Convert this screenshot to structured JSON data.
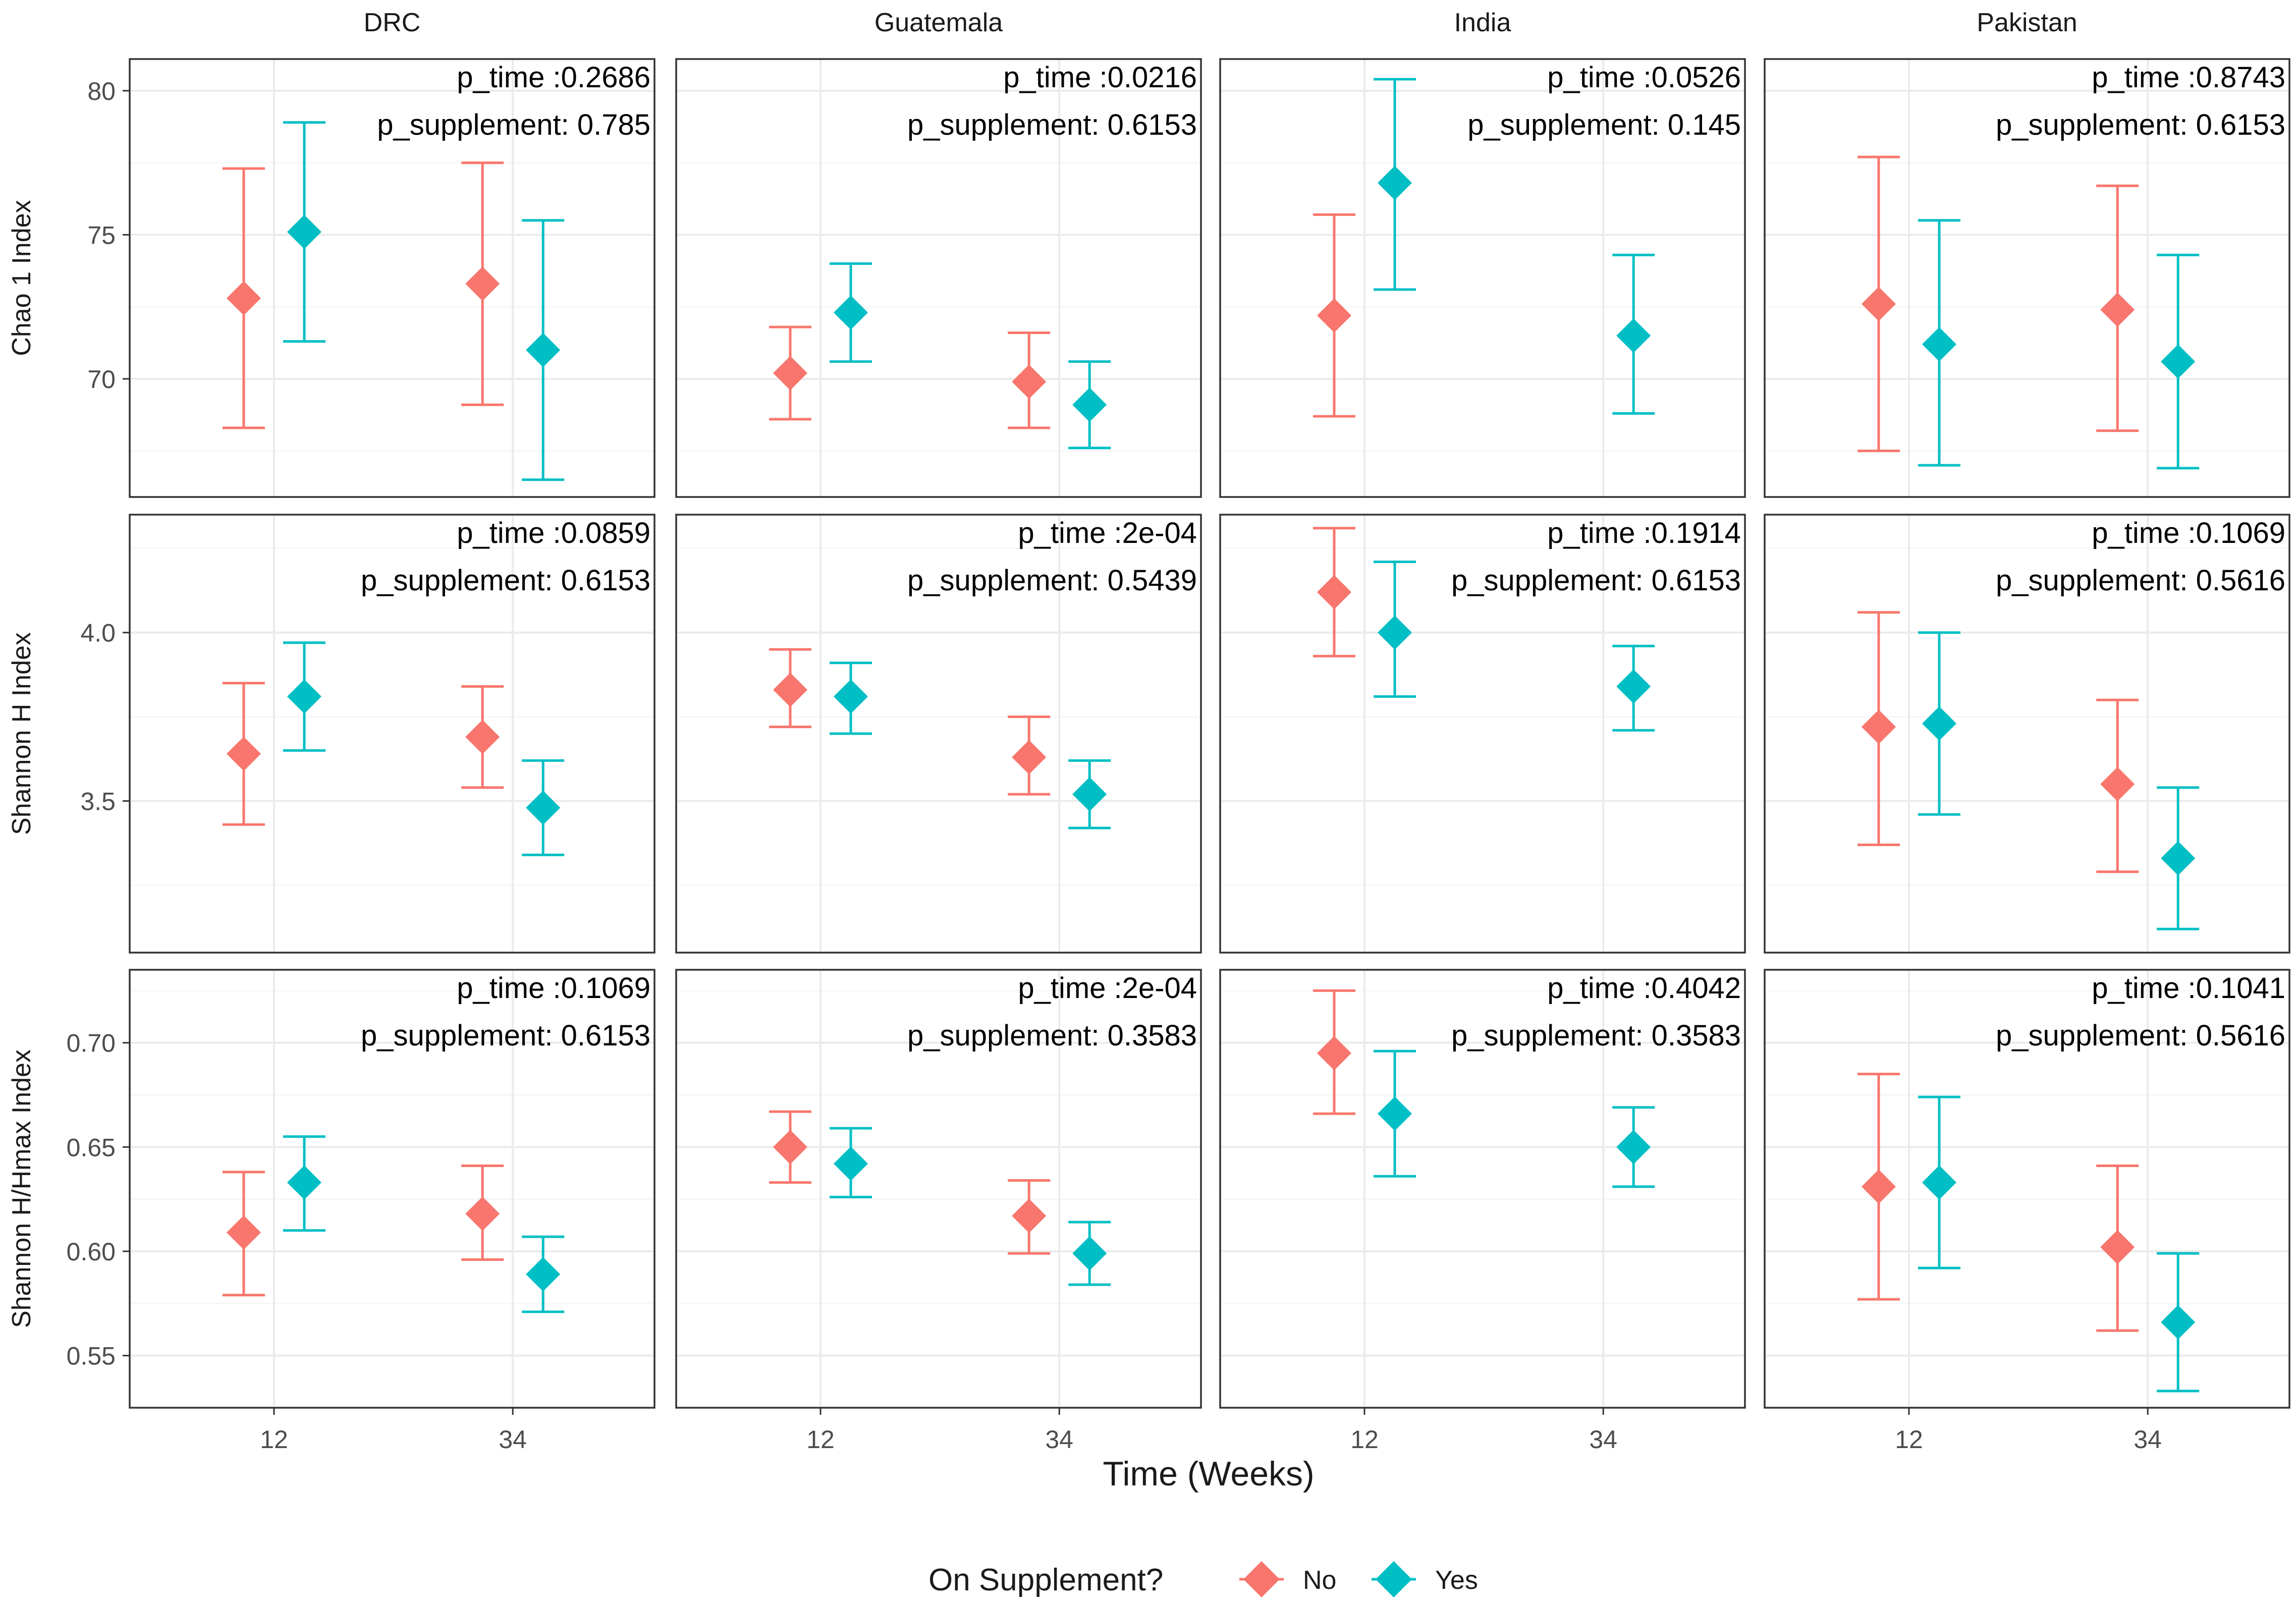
{
  "colors": {
    "no": "#F8766D",
    "yes": "#00BFC4",
    "panel_border": "#333333",
    "grid_major": "#EBEBEB",
    "grid_minor": "#F5F5F5",
    "axis_text": "#4D4D4D",
    "text": "#1A1A1A"
  },
  "chart_data": {
    "type": "pointrange-facet",
    "xlabel": "Time (Weeks)",
    "x_categories": [
      "12",
      "34"
    ],
    "legend": {
      "title": "On Supplement?",
      "position": "bottom",
      "items": [
        {
          "key": "no",
          "label": "No"
        },
        {
          "key": "yes",
          "label": "Yes"
        }
      ]
    },
    "columns": [
      "DRC",
      "Guatemala",
      "India",
      "Pakistan"
    ],
    "rows": [
      {
        "ylabel": "Chao 1 Index",
        "ylim": [
          65.9,
          81.1
        ],
        "yticks": [
          70,
          75,
          80
        ],
        "ytick_labels": [
          "70",
          "75",
          "80"
        ],
        "minor_yticks": [
          67.5,
          72.5,
          77.5
        ],
        "panels": [
          {
            "p_time_label": "p_time :0.2686",
            "p_supp_label": "p_supplement: 0.785",
            "points": [
              {
                "time": "12",
                "group": "no",
                "mean": 72.8,
                "lower": 68.3,
                "upper": 77.3
              },
              {
                "time": "12",
                "group": "yes",
                "mean": 75.1,
                "lower": 71.3,
                "upper": 78.9
              },
              {
                "time": "34",
                "group": "no",
                "mean": 73.3,
                "lower": 69.1,
                "upper": 77.5
              },
              {
                "time": "34",
                "group": "yes",
                "mean": 71.0,
                "lower": 66.5,
                "upper": 75.5
              }
            ]
          },
          {
            "p_time_label": "p_time :0.0216",
            "p_supp_label": "p_supplement: 0.6153",
            "points": [
              {
                "time": "12",
                "group": "no",
                "mean": 70.2,
                "lower": 68.6,
                "upper": 71.8
              },
              {
                "time": "12",
                "group": "yes",
                "mean": 72.3,
                "lower": 70.6,
                "upper": 74.0
              },
              {
                "time": "34",
                "group": "no",
                "mean": 69.9,
                "lower": 68.3,
                "upper": 71.6
              },
              {
                "time": "34",
                "group": "yes",
                "mean": 69.1,
                "lower": 67.6,
                "upper": 70.6
              }
            ]
          },
          {
            "p_time_label": "p_time :0.0526",
            "p_supp_label": "p_supplement: 0.145",
            "points": [
              {
                "time": "12",
                "group": "no",
                "mean": 72.2,
                "lower": 68.7,
                "upper": 75.7
              },
              {
                "time": "12",
                "group": "yes",
                "mean": 76.8,
                "lower": 73.1,
                "upper": 80.4
              },
              {
                "time": "34",
                "group": "yes",
                "mean": 71.5,
                "lower": 68.8,
                "upper": 74.3
              }
            ]
          },
          {
            "p_time_label": "p_time :0.8743",
            "p_supp_label": "p_supplement: 0.6153",
            "points": [
              {
                "time": "12",
                "group": "no",
                "mean": 72.6,
                "lower": 67.5,
                "upper": 77.7
              },
              {
                "time": "12",
                "group": "yes",
                "mean": 71.2,
                "lower": 67.0,
                "upper": 75.5
              },
              {
                "time": "34",
                "group": "no",
                "mean": 72.4,
                "lower": 68.2,
                "upper": 76.7
              },
              {
                "time": "34",
                "group": "yes",
                "mean": 70.6,
                "lower": 66.9,
                "upper": 74.3
              }
            ]
          }
        ]
      },
      {
        "ylabel": "Shannon H Index",
        "ylim": [
          3.05,
          4.35
        ],
        "yticks": [
          3.5,
          4.0
        ],
        "ytick_labels": [
          "3.5",
          "4.0"
        ],
        "minor_yticks": [
          3.25,
          3.75,
          4.25
        ],
        "panels": [
          {
            "p_time_label": "p_time :0.0859",
            "p_supp_label": "p_supplement: 0.6153",
            "points": [
              {
                "time": "12",
                "group": "no",
                "mean": 3.64,
                "lower": 3.43,
                "upper": 3.85
              },
              {
                "time": "12",
                "group": "yes",
                "mean": 3.81,
                "lower": 3.65,
                "upper": 3.97
              },
              {
                "time": "34",
                "group": "no",
                "mean": 3.69,
                "lower": 3.54,
                "upper": 3.84
              },
              {
                "time": "34",
                "group": "yes",
                "mean": 3.48,
                "lower": 3.34,
                "upper": 3.62
              }
            ]
          },
          {
            "p_time_label": "p_time :2e-04",
            "p_supp_label": "p_supplement: 0.5439",
            "points": [
              {
                "time": "12",
                "group": "no",
                "mean": 3.83,
                "lower": 3.72,
                "upper": 3.95
              },
              {
                "time": "12",
                "group": "yes",
                "mean": 3.81,
                "lower": 3.7,
                "upper": 3.91
              },
              {
                "time": "34",
                "group": "no",
                "mean": 3.63,
                "lower": 3.52,
                "upper": 3.75
              },
              {
                "time": "34",
                "group": "yes",
                "mean": 3.52,
                "lower": 3.42,
                "upper": 3.62
              }
            ]
          },
          {
            "p_time_label": "p_time :0.1914",
            "p_supp_label": "p_supplement: 0.6153",
            "points": [
              {
                "time": "12",
                "group": "no",
                "mean": 4.12,
                "lower": 3.93,
                "upper": 4.31
              },
              {
                "time": "12",
                "group": "yes",
                "mean": 4.0,
                "lower": 3.81,
                "upper": 4.21
              },
              {
                "time": "34",
                "group": "yes",
                "mean": 3.84,
                "lower": 3.71,
                "upper": 3.96
              }
            ]
          },
          {
            "p_time_label": "p_time :0.1069",
            "p_supp_label": "p_supplement: 0.5616",
            "points": [
              {
                "time": "12",
                "group": "no",
                "mean": 3.72,
                "lower": 3.37,
                "upper": 4.06
              },
              {
                "time": "12",
                "group": "yes",
                "mean": 3.73,
                "lower": 3.46,
                "upper": 4.0
              },
              {
                "time": "34",
                "group": "no",
                "mean": 3.55,
                "lower": 3.29,
                "upper": 3.8
              },
              {
                "time": "34",
                "group": "yes",
                "mean": 3.33,
                "lower": 3.12,
                "upper": 3.54
              }
            ]
          }
        ]
      },
      {
        "ylabel": "Shannon H/Hmax Index",
        "ylim": [
          0.525,
          0.735
        ],
        "yticks": [
          0.55,
          0.6,
          0.65,
          0.7
        ],
        "ytick_labels": [
          "0.55",
          "0.60",
          "0.65",
          "0.70"
        ],
        "minor_yticks": [
          0.575,
          0.625,
          0.675,
          0.725
        ],
        "panels": [
          {
            "p_time_label": "p_time :0.1069",
            "p_supp_label": "p_supplement: 0.6153",
            "points": [
              {
                "time": "12",
                "group": "no",
                "mean": 0.609,
                "lower": 0.579,
                "upper": 0.638
              },
              {
                "time": "12",
                "group": "yes",
                "mean": 0.633,
                "lower": 0.61,
                "upper": 0.655
              },
              {
                "time": "34",
                "group": "no",
                "mean": 0.618,
                "lower": 0.596,
                "upper": 0.641
              },
              {
                "time": "34",
                "group": "yes",
                "mean": 0.589,
                "lower": 0.571,
                "upper": 0.607
              }
            ]
          },
          {
            "p_time_label": "p_time :2e-04",
            "p_supp_label": "p_supplement: 0.3583",
            "points": [
              {
                "time": "12",
                "group": "no",
                "mean": 0.65,
                "lower": 0.633,
                "upper": 0.667
              },
              {
                "time": "12",
                "group": "yes",
                "mean": 0.642,
                "lower": 0.626,
                "upper": 0.659
              },
              {
                "time": "34",
                "group": "no",
                "mean": 0.617,
                "lower": 0.599,
                "upper": 0.634
              },
              {
                "time": "34",
                "group": "yes",
                "mean": 0.599,
                "lower": 0.584,
                "upper": 0.614
              }
            ]
          },
          {
            "p_time_label": "p_time :0.4042",
            "p_supp_label": "p_supplement: 0.3583",
            "points": [
              {
                "time": "12",
                "group": "no",
                "mean": 0.695,
                "lower": 0.666,
                "upper": 0.725
              },
              {
                "time": "12",
                "group": "yes",
                "mean": 0.666,
                "lower": 0.636,
                "upper": 0.696
              },
              {
                "time": "34",
                "group": "yes",
                "mean": 0.65,
                "lower": 0.631,
                "upper": 0.669
              }
            ]
          },
          {
            "p_time_label": "p_time :0.1041",
            "p_supp_label": "p_supplement: 0.5616",
            "points": [
              {
                "time": "12",
                "group": "no",
                "mean": 0.631,
                "lower": 0.577,
                "upper": 0.685
              },
              {
                "time": "12",
                "group": "yes",
                "mean": 0.633,
                "lower": 0.592,
                "upper": 0.674
              },
              {
                "time": "34",
                "group": "no",
                "mean": 0.602,
                "lower": 0.562,
                "upper": 0.641
              },
              {
                "time": "34",
                "group": "yes",
                "mean": 0.566,
                "lower": 0.533,
                "upper": 0.599
              }
            ]
          }
        ]
      }
    ]
  }
}
